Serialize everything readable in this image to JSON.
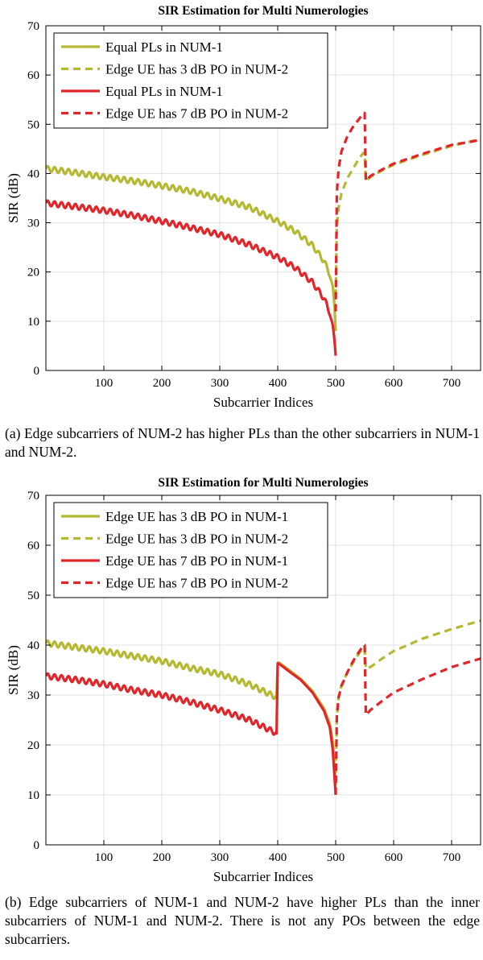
{
  "colors": {
    "olive": "#b5b832",
    "red": "#e0262a"
  },
  "captions": {
    "a": "(a) Edge subcarriers of NUM-2 has higher PLs than the other subcarriers in NUM-1 and NUM-2.",
    "b": "(b) Edge subcarriers of NUM-1 and NUM-2 have higher PLs than the inner subcarriers of NUM-1 and NUM-2. There is not any POs between the edge subcarriers."
  },
  "chart_data": [
    {
      "type": "line",
      "title": "SIR Estimation for Multi Numerologies",
      "xlabel": "Subcarrier Indices",
      "ylabel": "SIR (dB)",
      "xlim": [
        0,
        750
      ],
      "ylim": [
        0,
        70
      ],
      "xticks": [
        100,
        200,
        300,
        400,
        500,
        600,
        700
      ],
      "yticks": [
        0,
        10,
        20,
        30,
        40,
        50,
        60,
        70
      ],
      "grid": true,
      "legend_position": "top-left",
      "series": [
        {
          "name": "Equal PLs in NUM-1",
          "color": "olive",
          "style": "solid",
          "x": [
            0,
            50,
            100,
            150,
            200,
            250,
            300,
            350,
            400,
            430,
            460,
            480,
            490,
            495,
            498,
            500
          ],
          "y": [
            41,
            40.2,
            39.3,
            38.5,
            37.5,
            36.4,
            34.9,
            33.2,
            30.3,
            28.3,
            25.4,
            22.2,
            19.5,
            16.5,
            13,
            8
          ]
        },
        {
          "name": "Edge UE has 3 dB PO in NUM-2",
          "color": "olive",
          "style": "dashed",
          "x": [
            500,
            502,
            505,
            510,
            520,
            530,
            540,
            548,
            550,
            552,
            560,
            580,
            600,
            650,
            700,
            750
          ],
          "y": [
            15,
            29,
            33,
            36,
            39,
            41,
            43,
            44.2,
            44.2,
            38.5,
            39.3,
            40.6,
            41.8,
            43.8,
            45.6,
            47
          ]
        },
        {
          "name": "Equal PLs in NUM-1",
          "color": "red",
          "style": "solid",
          "x": [
            0,
            50,
            100,
            150,
            200,
            250,
            300,
            350,
            400,
            430,
            460,
            480,
            490,
            495,
            498,
            500
          ],
          "y": [
            34,
            33.3,
            32.5,
            31.5,
            30.3,
            29,
            27.6,
            25.6,
            23,
            20.9,
            17.9,
            14.6,
            11.7,
            8.6,
            6,
            3
          ]
        },
        {
          "name": "Edge UE has 7 dB PO in NUM-2",
          "color": "red",
          "style": "dashed",
          "x": [
            500,
            502,
            505,
            510,
            520,
            530,
            540,
            548,
            550,
            552,
            560,
            580,
            600,
            650,
            700,
            750
          ],
          "y": [
            12,
            36,
            41,
            44.5,
            47.5,
            49.5,
            51,
            52.3,
            52.3,
            38.5,
            39.5,
            40.8,
            42,
            44,
            45.8,
            46.8
          ]
        }
      ]
    },
    {
      "type": "line",
      "title": "SIR Estimation for Multi Numerologies",
      "xlabel": "Subcarrier Indices",
      "ylabel": "SIR (dB)",
      "xlim": [
        0,
        750
      ],
      "ylim": [
        0,
        70
      ],
      "xticks": [
        100,
        200,
        300,
        400,
        500,
        600,
        700
      ],
      "yticks": [
        0,
        10,
        20,
        30,
        40,
        50,
        60,
        70
      ],
      "grid": true,
      "legend_position": "top-left",
      "series": [
        {
          "name": "Edge UE has 3 dB PO in NUM-1",
          "color": "olive",
          "style": "solid",
          "x": [
            0,
            50,
            100,
            150,
            200,
            250,
            300,
            350,
            395,
            398,
            400,
            402,
            420,
            440,
            460,
            480,
            490,
            495,
            500
          ],
          "y": [
            40.4,
            39.6,
            38.8,
            37.8,
            36.8,
            35.4,
            34.2,
            32.2,
            29.7,
            29.7,
            36.5,
            36.5,
            35,
            33.2,
            30.8,
            27.3,
            24.2,
            20.5,
            12
          ]
        },
        {
          "name": "Edge UE has 3 dB PO in NUM-2",
          "color": "olive",
          "style": "dashed",
          "x": [
            500,
            502,
            505,
            510,
            520,
            530,
            540,
            548,
            550,
            552,
            560,
            580,
            600,
            650,
            700,
            750
          ],
          "y": [
            12,
            25,
            29.5,
            32,
            34.5,
            36.5,
            38.3,
            39.5,
            39.5,
            35.3,
            35.6,
            37.3,
            38.8,
            41.3,
            43.2,
            44.9
          ]
        },
        {
          "name": "Edge UE has 7 dB PO in NUM-1",
          "color": "red",
          "style": "solid",
          "x": [
            0,
            50,
            100,
            150,
            200,
            250,
            300,
            350,
            395,
            398,
            400,
            402,
            420,
            440,
            460,
            480,
            490,
            495,
            500
          ],
          "y": [
            33.8,
            33.1,
            32.2,
            31,
            30,
            28.6,
            27,
            25.1,
            22.5,
            22.3,
            36.3,
            36.3,
            34.7,
            33,
            30.5,
            26.8,
            23.5,
            19,
            10
          ]
        },
        {
          "name": "Edge UE has 7 dB PO in NUM-2",
          "color": "red",
          "style": "dashed",
          "x": [
            500,
            502,
            505,
            510,
            520,
            530,
            540,
            548,
            550,
            552,
            560,
            580,
            600,
            650,
            700,
            750
          ],
          "y": [
            10,
            26,
            29.5,
            31.8,
            34.5,
            36.8,
            38.6,
            40,
            40,
            26,
            27,
            28.8,
            30.5,
            33.2,
            35.6,
            37.3
          ]
        }
      ]
    }
  ]
}
